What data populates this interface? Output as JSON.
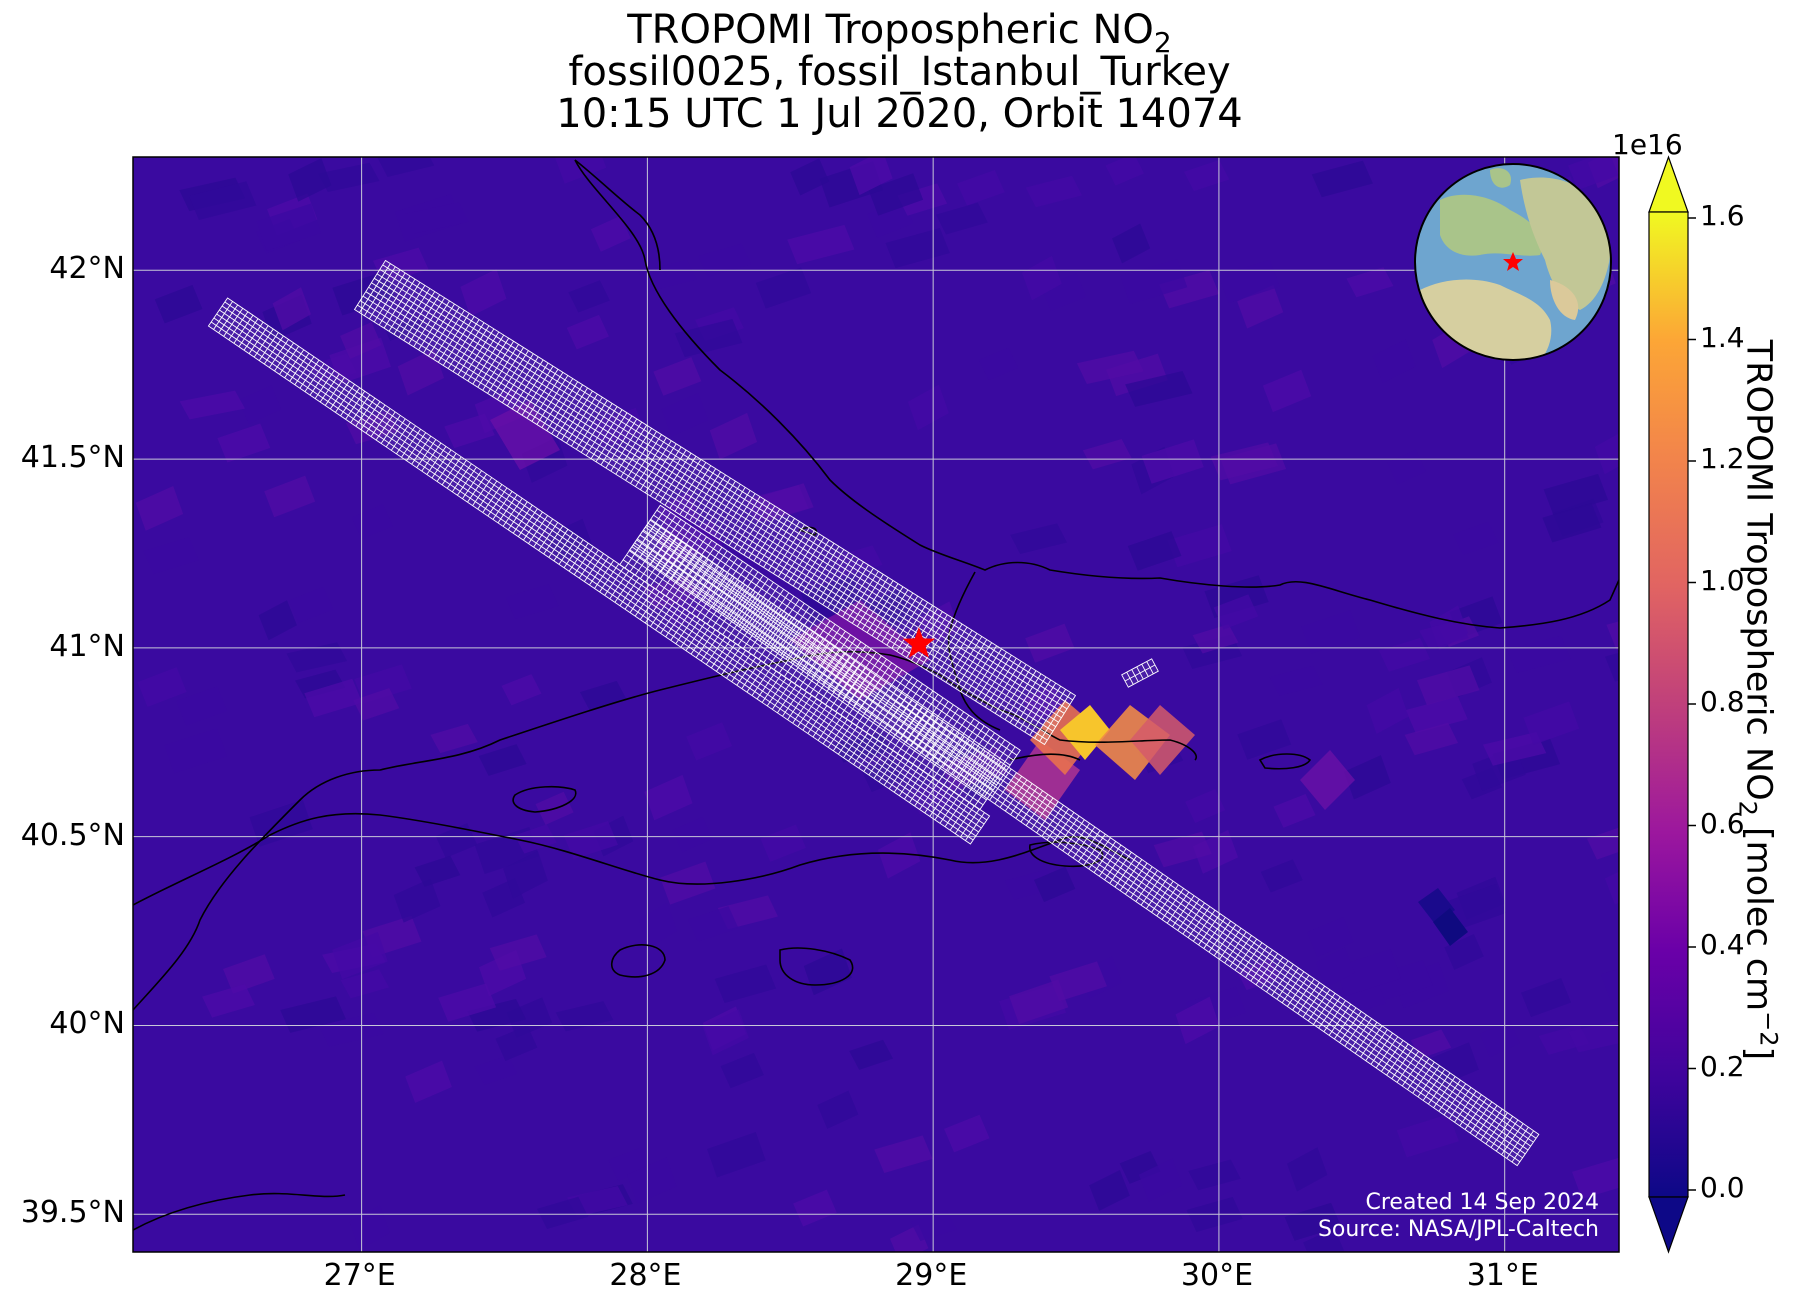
{
  "title": {
    "line1_prefix": "TROPOMI Tropospheric NO",
    "line1_sub": "2",
    "line2": "fossil0025, fossil_Istanbul_Turkey",
    "line3": "10:15 UTC 1 Jul 2020, Orbit 14074"
  },
  "map": {
    "lon_ticks": [
      "27°E",
      "28°E",
      "29°E",
      "30°E",
      "31°E"
    ],
    "lat_ticks": [
      "42°N",
      "41.5°N",
      "41°N",
      "40.5°N",
      "40°N",
      "39.5°N"
    ],
    "lon_values": [
      27,
      28,
      29,
      30,
      31
    ],
    "lat_values": [
      42,
      41.5,
      41,
      40.5,
      40,
      39.5
    ],
    "lon_range": [
      26.2,
      31.4
    ],
    "lat_range": [
      39.4,
      42.3
    ],
    "target_marker": {
      "name": "Istanbul target",
      "lon": 28.95,
      "lat": 41.01,
      "color": "#ff0000"
    },
    "background_color": "#3a0aa0"
  },
  "colorbar": {
    "label_prefix": "TROPOMI Tropospheric NO",
    "label_sub": "2",
    "label_suffix": " [molec cm",
    "label_sup": "−2",
    "label_end": "]",
    "exponent": "1e16",
    "ticks": [
      "0.0",
      "0.2",
      "0.4",
      "0.6",
      "0.8",
      "1.0",
      "1.2",
      "1.4",
      "1.6"
    ],
    "range": [
      0.0,
      1.6
    ],
    "colormap": "plasma"
  },
  "footer": {
    "created": "Created 14 Sep 2024",
    "source": "Source: NASA/JPL-Caltech"
  }
}
